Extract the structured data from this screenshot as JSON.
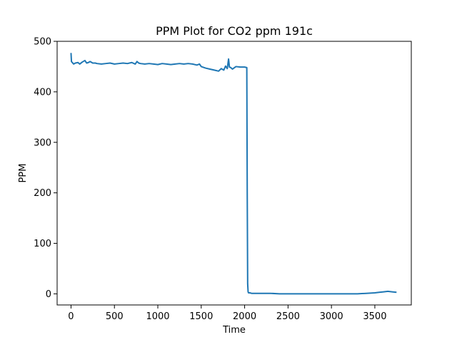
{
  "chart_data": {
    "type": "line",
    "title": "PPM Plot for CO2 ppm 191c",
    "xlabel": "Time",
    "ylabel": "PPM",
    "xlim": [
      -160,
      3920
    ],
    "ylim": [
      -22,
      500
    ],
    "xticks": [
      0,
      500,
      1000,
      1500,
      2000,
      2500,
      3000,
      3500
    ],
    "yticks": [
      0,
      100,
      200,
      300,
      400,
      500
    ],
    "grid": false,
    "line_color": "#1f77b4",
    "series": [
      {
        "x": [
          0,
          5,
          15,
          30,
          50,
          80,
          100,
          130,
          160,
          180,
          200,
          220,
          250,
          280,
          300,
          350,
          400,
          450,
          500,
          550,
          600,
          650,
          700,
          740,
          760,
          780,
          800,
          850,
          900,
          950,
          1000,
          1050,
          1100,
          1150,
          1200,
          1250,
          1300,
          1350,
          1400,
          1450,
          1480,
          1500,
          1550,
          1600,
          1650,
          1700,
          1730,
          1760,
          1780,
          1800,
          1815,
          1825,
          1840,
          1860,
          1900,
          1950,
          2000,
          2025,
          2030,
          2035,
          2040,
          2045,
          2050,
          2060,
          2080,
          2100,
          2150,
          2200,
          2300,
          2400,
          2500,
          2600,
          2700,
          2800,
          2900,
          3000,
          3100,
          3200,
          3300,
          3400,
          3500,
          3550,
          3600,
          3650,
          3700,
          3750
        ],
        "y": [
          477,
          460,
          458,
          455,
          457,
          458,
          455,
          459,
          462,
          457,
          458,
          460,
          457,
          457,
          456,
          455,
          456,
          457,
          455,
          456,
          457,
          456,
          458,
          455,
          460,
          457,
          456,
          455,
          456,
          455,
          454,
          456,
          455,
          454,
          455,
          456,
          455,
          456,
          455,
          453,
          455,
          450,
          447,
          445,
          443,
          441,
          446,
          443,
          451,
          446,
          465,
          449,
          448,
          445,
          450,
          449,
          449,
          448,
          200,
          20,
          4,
          2,
          2,
          2,
          1,
          1,
          1,
          1,
          1,
          0,
          0,
          0,
          0,
          0,
          0,
          0,
          0,
          0,
          0,
          1,
          2,
          3,
          4,
          5,
          4,
          3
        ]
      }
    ]
  }
}
